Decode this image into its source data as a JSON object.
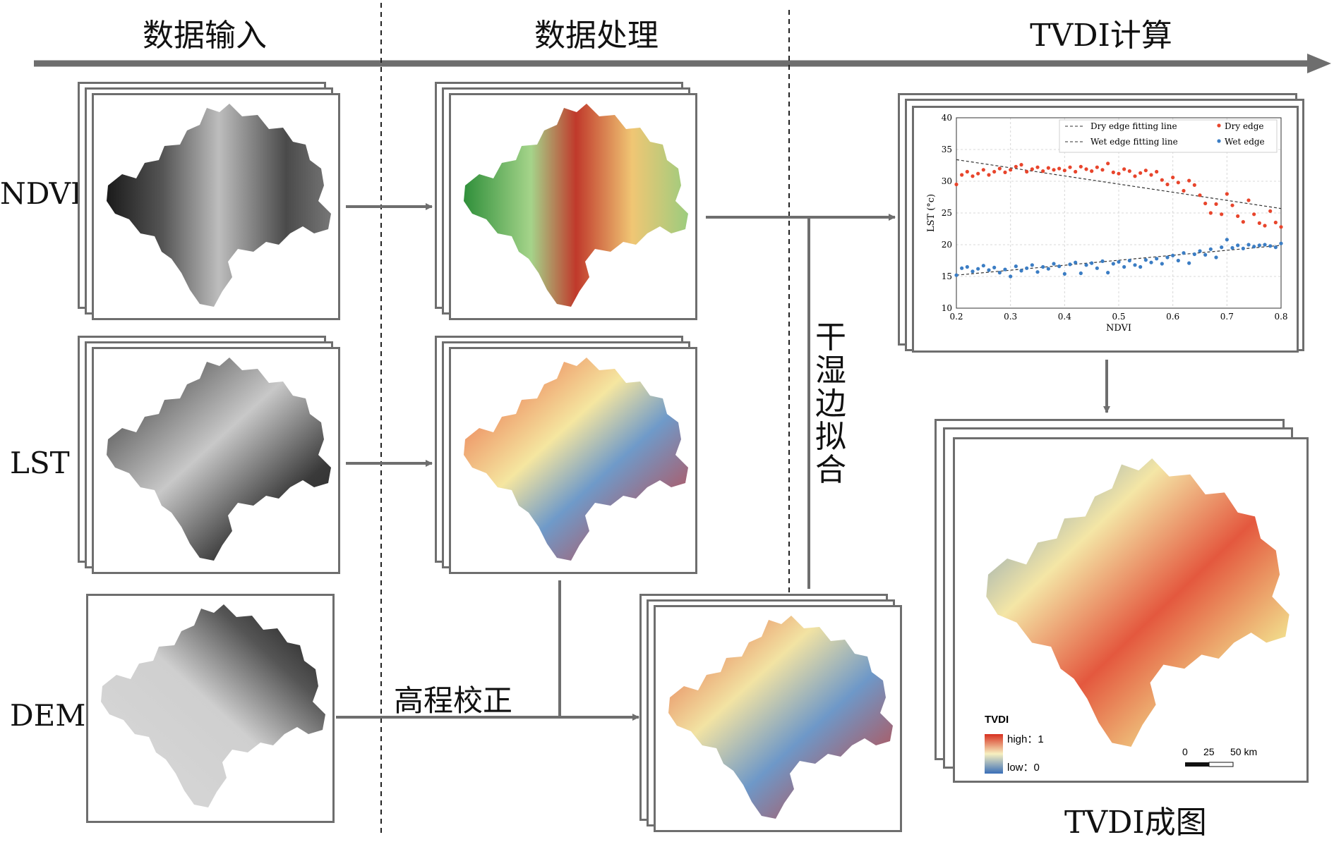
{
  "stages": {
    "input": "数据输入",
    "processing": "数据处理",
    "tvdi_calc": "TVDI计算"
  },
  "rows": {
    "ndvi": "NDVI",
    "lst": "LST",
    "dem": "DEM"
  },
  "labels": {
    "elevation_correction": "高程校正",
    "dry_wet_edge_fitting": "干\n湿\n边\n拟\n合",
    "tvdi_map": "TVDI成图"
  },
  "chart_data": {
    "type": "scatter",
    "xlabel": "NDVI",
    "ylabel": "LST (°c)",
    "xlim": [
      0.2,
      0.8
    ],
    "ylim": [
      10,
      40
    ],
    "xticks": [
      "0.2",
      "0.3",
      "0.4",
      "0.5",
      "0.6",
      "0.7",
      "0.8"
    ],
    "yticks": [
      "10",
      "15",
      "20",
      "25",
      "30",
      "35",
      "40"
    ],
    "grid": true,
    "legend_position": "top",
    "legend": [
      "Dry edge fitting line",
      "Wet edge fitting line",
      "Dry edge",
      "Wet edge"
    ],
    "colors": {
      "dry": "#e8452c",
      "wet": "#3b7dc4",
      "line": "#333333"
    },
    "series": [
      {
        "name": "Dry edge",
        "x": [
          0.2,
          0.21,
          0.22,
          0.23,
          0.24,
          0.25,
          0.26,
          0.27,
          0.28,
          0.29,
          0.3,
          0.31,
          0.32,
          0.33,
          0.34,
          0.35,
          0.36,
          0.37,
          0.38,
          0.39,
          0.4,
          0.41,
          0.42,
          0.43,
          0.44,
          0.45,
          0.46,
          0.47,
          0.48,
          0.49,
          0.5,
          0.51,
          0.52,
          0.53,
          0.54,
          0.55,
          0.56,
          0.57,
          0.58,
          0.59,
          0.6,
          0.61,
          0.62,
          0.63,
          0.64,
          0.65,
          0.66,
          0.67,
          0.68,
          0.69,
          0.7,
          0.71,
          0.72,
          0.73,
          0.74,
          0.75,
          0.76,
          0.77,
          0.78,
          0.79,
          0.8
        ],
        "y": [
          29.5,
          31.0,
          31.5,
          30.8,
          31.2,
          31.8,
          31.0,
          31.5,
          32.0,
          31.4,
          31.8,
          32.3,
          32.6,
          31.5,
          31.9,
          32.2,
          31.6,
          32.1,
          31.8,
          32.0,
          31.7,
          32.2,
          31.5,
          32.3,
          31.9,
          31.6,
          32.2,
          31.8,
          32.8,
          31.4,
          31.2,
          31.9,
          31.6,
          30.8,
          31.3,
          31.7,
          31.0,
          31.5,
          30.2,
          29.5,
          30.6,
          29.8,
          28.5,
          30.1,
          29.4,
          27.8,
          26.5,
          25.0,
          26.4,
          24.8,
          28.0,
          26.2,
          24.5,
          23.6,
          27.0,
          24.8,
          23.4,
          23.0,
          25.3,
          23.5,
          22.8
        ]
      },
      {
        "name": "Wet edge",
        "x": [
          0.2,
          0.21,
          0.22,
          0.23,
          0.24,
          0.25,
          0.26,
          0.27,
          0.28,
          0.29,
          0.3,
          0.31,
          0.32,
          0.33,
          0.34,
          0.35,
          0.36,
          0.37,
          0.38,
          0.39,
          0.4,
          0.41,
          0.42,
          0.43,
          0.44,
          0.45,
          0.46,
          0.47,
          0.48,
          0.49,
          0.5,
          0.51,
          0.52,
          0.53,
          0.54,
          0.55,
          0.56,
          0.57,
          0.58,
          0.59,
          0.6,
          0.61,
          0.62,
          0.63,
          0.64,
          0.65,
          0.66,
          0.67,
          0.68,
          0.69,
          0.7,
          0.71,
          0.72,
          0.73,
          0.74,
          0.75,
          0.76,
          0.77,
          0.78,
          0.79,
          0.8
        ],
        "y": [
          15.2,
          16.3,
          16.5,
          15.8,
          16.2,
          16.7,
          16.0,
          16.4,
          15.6,
          16.1,
          15.0,
          16.6,
          15.9,
          16.3,
          16.8,
          15.7,
          16.5,
          16.2,
          17.0,
          16.6,
          15.4,
          16.9,
          17.2,
          15.5,
          16.8,
          17.1,
          16.3,
          17.4,
          15.6,
          17.0,
          17.3,
          16.5,
          17.5,
          16.8,
          16.5,
          17.6,
          17.2,
          17.8,
          17.0,
          18.0,
          18.3,
          17.5,
          18.7,
          17.1,
          18.5,
          19.0,
          18.4,
          19.3,
          18.0,
          19.6,
          20.8,
          19.5,
          19.9,
          19.4,
          20.0,
          19.7,
          19.9,
          20.0,
          19.8,
          19.6,
          20.2
        ]
      }
    ],
    "fits": [
      {
        "name": "Dry edge fitting line",
        "x": [
          0.2,
          0.8
        ],
        "y": [
          33.4,
          25.7
        ]
      },
      {
        "name": "Wet edge fitting line",
        "x": [
          0.2,
          0.8
        ],
        "y": [
          15.2,
          19.9
        ]
      }
    ]
  },
  "tvdi_legend": {
    "title": "TVDI",
    "high": "high：1",
    "low": "low：0",
    "scale_ticks": [
      "0",
      "25",
      "50 km"
    ]
  }
}
